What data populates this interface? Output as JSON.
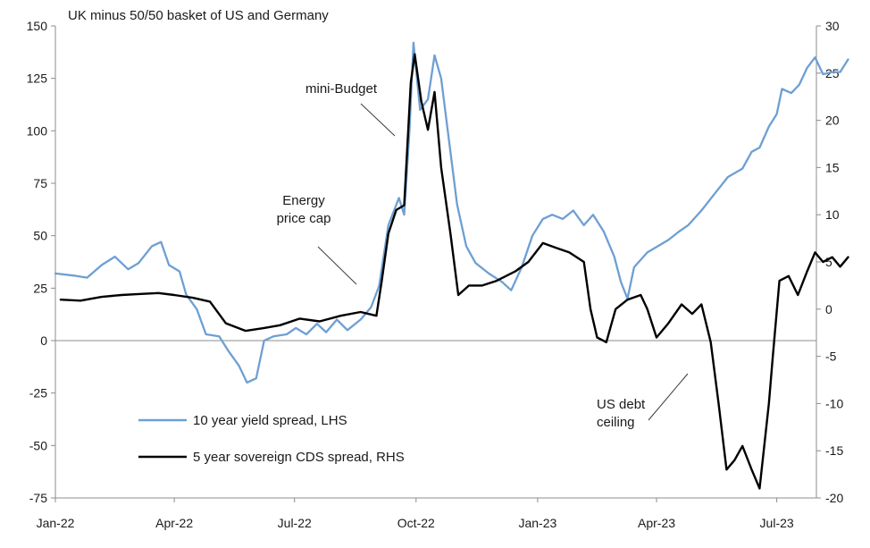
{
  "chart_data": {
    "type": "line",
    "title": "UK minus 50/50 basket of US and Germany",
    "x_ticks": [
      "Jan-22",
      "Apr-22",
      "Jul-22",
      "Oct-22",
      "Jan-23",
      "Apr-23",
      "Jul-23"
    ],
    "x_range": [
      "2022-01-01",
      "2023-07-31"
    ],
    "ylim_left": [
      -75,
      150
    ],
    "yticks_left": [
      150,
      125,
      100,
      75,
      50,
      25,
      0,
      -25,
      -50,
      -75
    ],
    "ylim_right": [
      -20,
      30
    ],
    "yticks_right": [
      30,
      25,
      20,
      15,
      10,
      5,
      0,
      -5,
      -10,
      -15,
      -20
    ],
    "grid": false,
    "legend_position": "lower-left",
    "series": [
      {
        "name": "10 year yield spread, LHS",
        "axis": "left",
        "color": "#6e9fd3",
        "points": [
          [
            "2022-01-01",
            32
          ],
          [
            "2022-01-15",
            31
          ],
          [
            "2022-01-25",
            30
          ],
          [
            "2022-02-05",
            36
          ],
          [
            "2022-02-15",
            40
          ],
          [
            "2022-02-25",
            34
          ],
          [
            "2022-03-05",
            37
          ],
          [
            "2022-03-15",
            45
          ],
          [
            "2022-03-22",
            47
          ],
          [
            "2022-03-28",
            36
          ],
          [
            "2022-04-05",
            33
          ],
          [
            "2022-04-10",
            22
          ],
          [
            "2022-04-18",
            15
          ],
          [
            "2022-04-25",
            3
          ],
          [
            "2022-05-05",
            2
          ],
          [
            "2022-05-12",
            -5
          ],
          [
            "2022-05-20",
            -12
          ],
          [
            "2022-05-26",
            -20
          ],
          [
            "2022-06-02",
            -18
          ],
          [
            "2022-06-08",
            0
          ],
          [
            "2022-06-15",
            2
          ],
          [
            "2022-06-25",
            3
          ],
          [
            "2022-07-02",
            6
          ],
          [
            "2022-07-10",
            3
          ],
          [
            "2022-07-18",
            8
          ],
          [
            "2022-07-25",
            4
          ],
          [
            "2022-08-02",
            10
          ],
          [
            "2022-08-10",
            5
          ],
          [
            "2022-08-20",
            10
          ],
          [
            "2022-08-28",
            16
          ],
          [
            "2022-09-03",
            26
          ],
          [
            "2022-09-10",
            55
          ],
          [
            "2022-09-18",
            68
          ],
          [
            "2022-09-22",
            60
          ],
          [
            "2022-09-26",
            100
          ],
          [
            "2022-09-29",
            142
          ],
          [
            "2022-10-04",
            110
          ],
          [
            "2022-10-10",
            115
          ],
          [
            "2022-10-15",
            136
          ],
          [
            "2022-10-20",
            125
          ],
          [
            "2022-10-25",
            100
          ],
          [
            "2022-11-01",
            65
          ],
          [
            "2022-11-08",
            45
          ],
          [
            "2022-11-15",
            37
          ],
          [
            "2022-11-25",
            32
          ],
          [
            "2022-12-05",
            28
          ],
          [
            "2022-12-12",
            24
          ],
          [
            "2022-12-20",
            35
          ],
          [
            "2022-12-28",
            50
          ],
          [
            "2023-01-05",
            58
          ],
          [
            "2023-01-12",
            60
          ],
          [
            "2023-01-20",
            58
          ],
          [
            "2023-01-28",
            62
          ],
          [
            "2023-02-05",
            55
          ],
          [
            "2023-02-12",
            60
          ],
          [
            "2023-02-20",
            52
          ],
          [
            "2023-02-28",
            40
          ],
          [
            "2023-03-05",
            28
          ],
          [
            "2023-03-10",
            20
          ],
          [
            "2023-03-15",
            35
          ],
          [
            "2023-03-25",
            42
          ],
          [
            "2023-04-02",
            45
          ],
          [
            "2023-04-10",
            48
          ],
          [
            "2023-04-18",
            52
          ],
          [
            "2023-04-25",
            55
          ],
          [
            "2023-05-05",
            62
          ],
          [
            "2023-05-15",
            70
          ],
          [
            "2023-05-25",
            78
          ],
          [
            "2023-06-05",
            82
          ],
          [
            "2023-06-12",
            90
          ],
          [
            "2023-06-18",
            92
          ],
          [
            "2023-06-25",
            102
          ],
          [
            "2023-07-01",
            108
          ],
          [
            "2023-07-05",
            120
          ],
          [
            "2023-07-12",
            118
          ],
          [
            "2023-07-18",
            122
          ],
          [
            "2023-07-24",
            130
          ],
          [
            "2023-07-30",
            135
          ],
          [
            "2023-08-05",
            127
          ],
          [
            "2023-08-12",
            128
          ],
          [
            "2023-08-18",
            128
          ],
          [
            "2023-08-24",
            134
          ]
        ]
      },
      {
        "name": "5 year sovereign CDS spread, RHS",
        "axis": "right",
        "color": "#000000",
        "points": [
          [
            "2022-01-05",
            1.0
          ],
          [
            "2022-01-20",
            0.9
          ],
          [
            "2022-02-05",
            1.3
          ],
          [
            "2022-02-20",
            1.5
          ],
          [
            "2022-03-05",
            1.6
          ],
          [
            "2022-03-20",
            1.7
          ],
          [
            "2022-04-01",
            1.5
          ],
          [
            "2022-04-15",
            1.2
          ],
          [
            "2022-04-28",
            0.8
          ],
          [
            "2022-05-10",
            -1.5
          ],
          [
            "2022-05-25",
            -2.3
          ],
          [
            "2022-06-08",
            -2.0
          ],
          [
            "2022-06-20",
            -1.7
          ],
          [
            "2022-07-05",
            -1.0
          ],
          [
            "2022-07-20",
            -1.3
          ],
          [
            "2022-08-05",
            -0.7
          ],
          [
            "2022-08-20",
            -0.3
          ],
          [
            "2022-09-01",
            -0.7
          ],
          [
            "2022-09-05",
            3.0
          ],
          [
            "2022-09-10",
            8.0
          ],
          [
            "2022-09-16",
            10.5
          ],
          [
            "2022-09-22",
            11.0
          ],
          [
            "2022-09-27",
            24.0
          ],
          [
            "2022-09-30",
            27.0
          ],
          [
            "2022-10-05",
            22.0
          ],
          [
            "2022-10-10",
            19.0
          ],
          [
            "2022-10-15",
            23.0
          ],
          [
            "2022-10-20",
            15.0
          ],
          [
            "2022-10-27",
            8.0
          ],
          [
            "2022-11-02",
            1.5
          ],
          [
            "2022-11-10",
            2.5
          ],
          [
            "2022-11-20",
            2.5
          ],
          [
            "2022-12-01",
            3.0
          ],
          [
            "2022-12-15",
            4.0
          ],
          [
            "2022-12-25",
            5.0
          ],
          [
            "2023-01-05",
            7.0
          ],
          [
            "2023-01-15",
            6.5
          ],
          [
            "2023-01-25",
            6.0
          ],
          [
            "2023-02-05",
            5.0
          ],
          [
            "2023-02-10",
            0.0
          ],
          [
            "2023-02-15",
            -3.0
          ],
          [
            "2023-02-22",
            -3.5
          ],
          [
            "2023-03-01",
            0.0
          ],
          [
            "2023-03-10",
            1.0
          ],
          [
            "2023-03-20",
            1.5
          ],
          [
            "2023-03-25",
            0.0
          ],
          [
            "2023-04-01",
            -3.0
          ],
          [
            "2023-04-10",
            -1.5
          ],
          [
            "2023-04-20",
            0.5
          ],
          [
            "2023-04-28",
            -0.5
          ],
          [
            "2023-05-05",
            0.5
          ],
          [
            "2023-05-12",
            -3.5
          ],
          [
            "2023-05-18",
            -10.0
          ],
          [
            "2023-05-24",
            -17.0
          ],
          [
            "2023-05-30",
            -16.0
          ],
          [
            "2023-06-05",
            -14.5
          ],
          [
            "2023-06-12",
            -17.0
          ],
          [
            "2023-06-18",
            -19.0
          ],
          [
            "2023-06-25",
            -10.0
          ],
          [
            "2023-06-28",
            -5.0
          ],
          [
            "2023-07-03",
            3.0
          ],
          [
            "2023-07-10",
            3.5
          ],
          [
            "2023-07-17",
            1.5
          ],
          [
            "2023-07-24",
            4.0
          ],
          [
            "2023-07-30",
            6.0
          ],
          [
            "2023-08-05",
            5.0
          ],
          [
            "2023-08-12",
            5.5
          ],
          [
            "2023-08-18",
            4.5
          ],
          [
            "2023-08-24",
            5.5
          ]
        ]
      }
    ],
    "annotations": [
      {
        "lines": [
          "mini-Budget"
        ],
        "target": [
          "2022-09-27",
          26
        ]
      },
      {
        "lines": [
          "Energy",
          "price cap"
        ],
        "target": [
          "2022-09-09",
          2
        ]
      },
      {
        "lines": [
          "US debt",
          "ceiling"
        ],
        "target": [
          "2023-05-20",
          -6
        ]
      }
    ]
  }
}
